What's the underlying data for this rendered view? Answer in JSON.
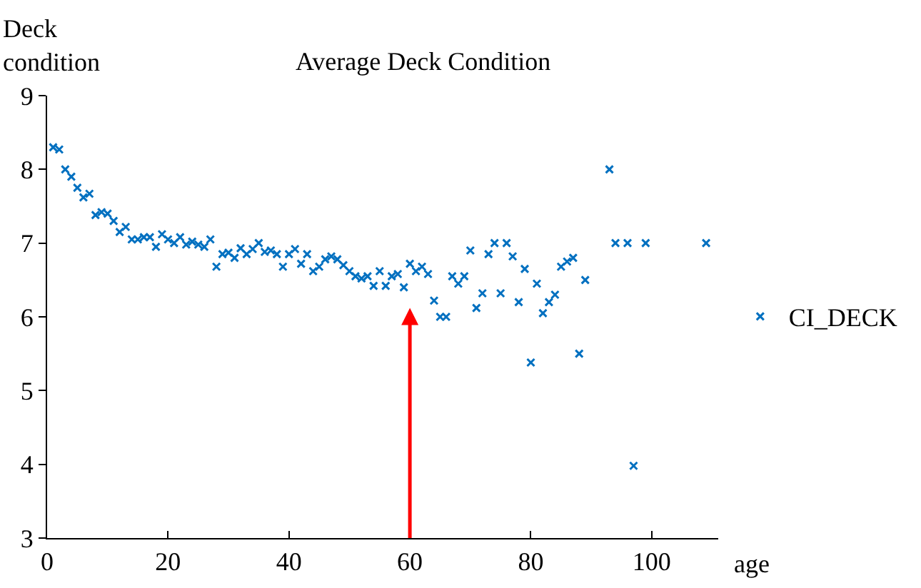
{
  "chart_data": {
    "type": "scatter",
    "title": "Average Deck Condition",
    "xlabel": "age",
    "ylabel": "Deck condition",
    "marker": "cross",
    "legend": "right",
    "grid": false,
    "xlim": [
      0,
      111
    ],
    "xticks": [
      0,
      20,
      40,
      60,
      80,
      100
    ],
    "ylim": [
      3,
      9
    ],
    "yticks": [
      3,
      4,
      5,
      6,
      7,
      8,
      9
    ],
    "ref_lines": [
      {
        "axis": "x",
        "value": 60,
        "color": "#ff0000"
      }
    ],
    "x": [
      1,
      2,
      3,
      4,
      5,
      6,
      7,
      8,
      9,
      10,
      11,
      12,
      13,
      14,
      15,
      16,
      17,
      18,
      19,
      20,
      21,
      22,
      23,
      24,
      25,
      26,
      27,
      28,
      29,
      30,
      31,
      32,
      33,
      34,
      35,
      36,
      37,
      38,
      39,
      40,
      41,
      42,
      43,
      44,
      45,
      46,
      47,
      48,
      49,
      50,
      51,
      52,
      53,
      54,
      55,
      56,
      57,
      58,
      59,
      60,
      61,
      62,
      63,
      64,
      65,
      66,
      67,
      68,
      69,
      70,
      71,
      72,
      73,
      74,
      75,
      76,
      77,
      78,
      79,
      80,
      81,
      82,
      83,
      84,
      85,
      86,
      87,
      88,
      89,
      93,
      94,
      96,
      97,
      99,
      109
    ],
    "series": [
      {
        "name": "CI_DECK",
        "color": "#0070c0",
        "values": [
          8.3,
          8.27,
          8.0,
          7.9,
          7.75,
          7.62,
          7.67,
          7.38,
          7.42,
          7.4,
          7.3,
          7.15,
          7.22,
          7.05,
          7.05,
          7.08,
          7.08,
          6.95,
          7.12,
          7.05,
          7.0,
          7.08,
          6.98,
          7.02,
          6.98,
          6.95,
          7.05,
          6.68,
          6.85,
          6.87,
          6.8,
          6.93,
          6.85,
          6.92,
          7.0,
          6.88,
          6.9,
          6.85,
          6.68,
          6.85,
          6.92,
          6.72,
          6.85,
          6.62,
          6.68,
          6.78,
          6.82,
          6.78,
          6.7,
          6.62,
          6.55,
          6.52,
          6.55,
          6.42,
          6.62,
          6.42,
          6.55,
          6.58,
          6.4,
          6.72,
          6.62,
          6.68,
          6.58,
          6.22,
          6.0,
          6.0,
          6.55,
          6.45,
          6.55,
          6.9,
          6.12,
          6.32,
          6.85,
          7.0,
          6.32,
          7.0,
          6.82,
          6.2,
          6.65,
          5.38,
          6.45,
          6.05,
          6.2,
          6.3,
          6.68,
          6.75,
          6.8,
          5.5,
          6.5,
          8.0,
          7.0,
          7.0,
          3.98,
          7.0,
          7.0
        ]
      }
    ]
  }
}
